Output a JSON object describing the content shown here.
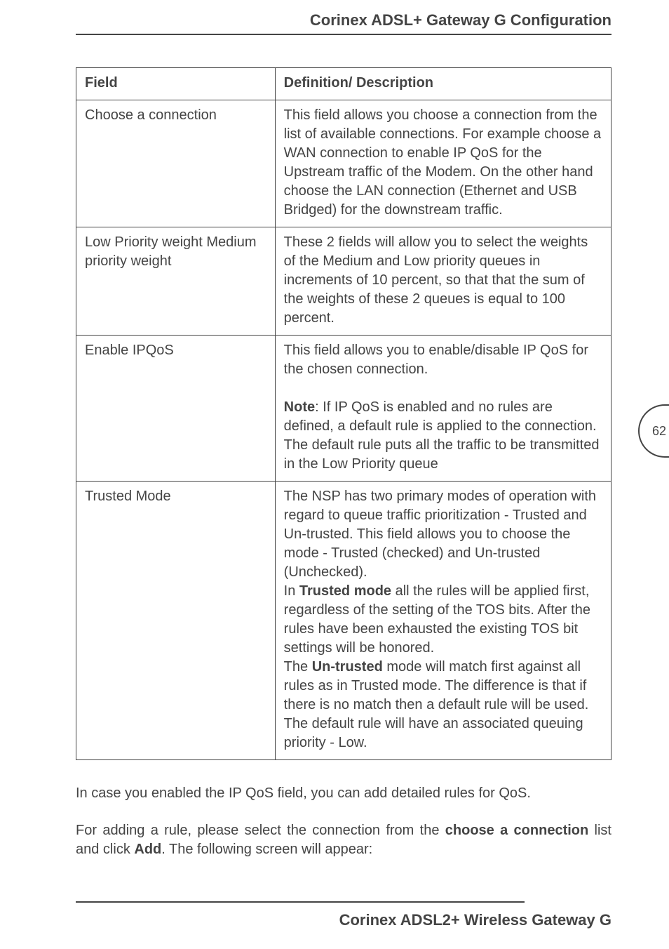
{
  "header": {
    "title": "Corinex ADSL+ Gateway G Configuration"
  },
  "footer": {
    "title": "Corinex ADSL2+ Wireless Gateway G"
  },
  "page_number": "62",
  "table": {
    "headers": {
      "field": "Field",
      "desc": "Definition/ Description"
    },
    "rows": [
      {
        "field": "Choose a connection",
        "desc": "This field allows you choose a connection from the list of available connections. For example choose a WAN connection to enable IP QoS for the Upstream traffic of the Modem. On the other hand choose the LAN connection (Ethernet and USB Bridged) for the down­stream traffic."
      },
      {
        "field": "Low Priority weight Medium priority weight",
        "desc": "These 2 fields will allow you to select the weights of the Medium and Low priority queues in increments of 10 percent, so that that the sum of the weights of these 2 queues is equal to 100 percent."
      },
      {
        "field": "Enable IPQoS",
        "desc_p1": "This field allows you to enable/disable IP QoS for the chosen connection.",
        "desc_p2_bold": "Note",
        "desc_p2_rest": ": If IP QoS is enabled and no rules are defined, a default rule is applied to the con­nection. The default rule puts all the traffic to be transmitted in the Low Priority queue"
      },
      {
        "field": "Trusted Mode",
        "desc_a": "The NSP has two primary modes of opera­tion with regard to queue traffic prioritization - Trusted and Un-trusted. This field allows you to choose the mode - Trusted (checked) and Un-trusted (Unchecked).",
        "desc_b_pre": "In ",
        "desc_b_bold": "Trusted mode",
        "desc_b_post": " all the rules will be applied first, regardless of the setting of the TOS bits. After the rules have been exhausted the existing TOS bit settings will be honored.",
        "desc_c_pre": "The ",
        "desc_c_bold": "Un-trusted",
        "desc_c_post": " mode will match first against all rules as in Trusted mode. The difference is that if there is no match then a default rule will be used. The default rule will have an associ­ated queuing priority - Low."
      }
    ]
  },
  "paragraphs": {
    "p1": "In case you enabled the IP QoS field, you can add detailed rules for QoS.",
    "p2_a": "For adding a rule, please select the connection from the ",
    "p2_bold1": "choose a connection",
    "p2_b": " list and click ",
    "p2_bold2": "Add",
    "p2_c": ".  The following screen will appear:"
  }
}
